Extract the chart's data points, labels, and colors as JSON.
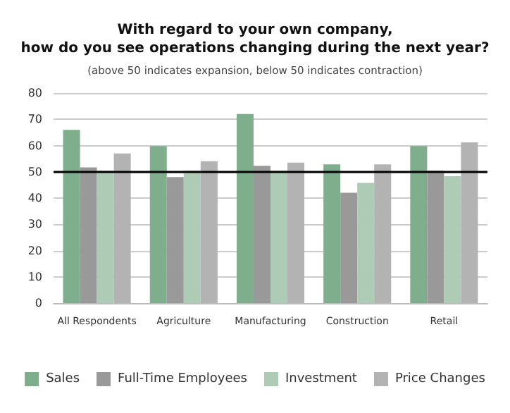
{
  "chart_data": {
    "type": "bar",
    "title": "With regard to your own company,\nhow do you see operations changing during the next year?",
    "subtitle": "(above 50 indicates expansion, below 50 indicates contraction)",
    "categories": [
      "All Respondents",
      "Agriculture",
      "Manufacturing",
      "Construction",
      "Retail"
    ],
    "series": [
      {
        "name": "Sales",
        "color": "#7fae8c",
        "values": [
          66,
          59.8,
          72,
          52.8,
          59.8
        ]
      },
      {
        "name": "Full-Time Employees",
        "color": "#999999",
        "values": [
          51.7,
          48,
          52.3,
          42,
          50.5
        ]
      },
      {
        "name": "Investment",
        "color": "#aecbb5",
        "values": [
          50.5,
          50.5,
          50.5,
          45.8,
          48.3
        ]
      },
      {
        "name": "Price Changes",
        "color": "#b3b3b3",
        "values": [
          57,
          54,
          53.5,
          52.8,
          61.2
        ]
      }
    ],
    "ylim": [
      0,
      80
    ],
    "yticks": [
      0,
      10,
      20,
      30,
      40,
      50,
      60,
      70,
      80
    ],
    "grid": "y",
    "legend": "bottom",
    "ref_lines": [
      {
        "axis": "y",
        "value": 50,
        "color": "#000000"
      }
    ]
  }
}
